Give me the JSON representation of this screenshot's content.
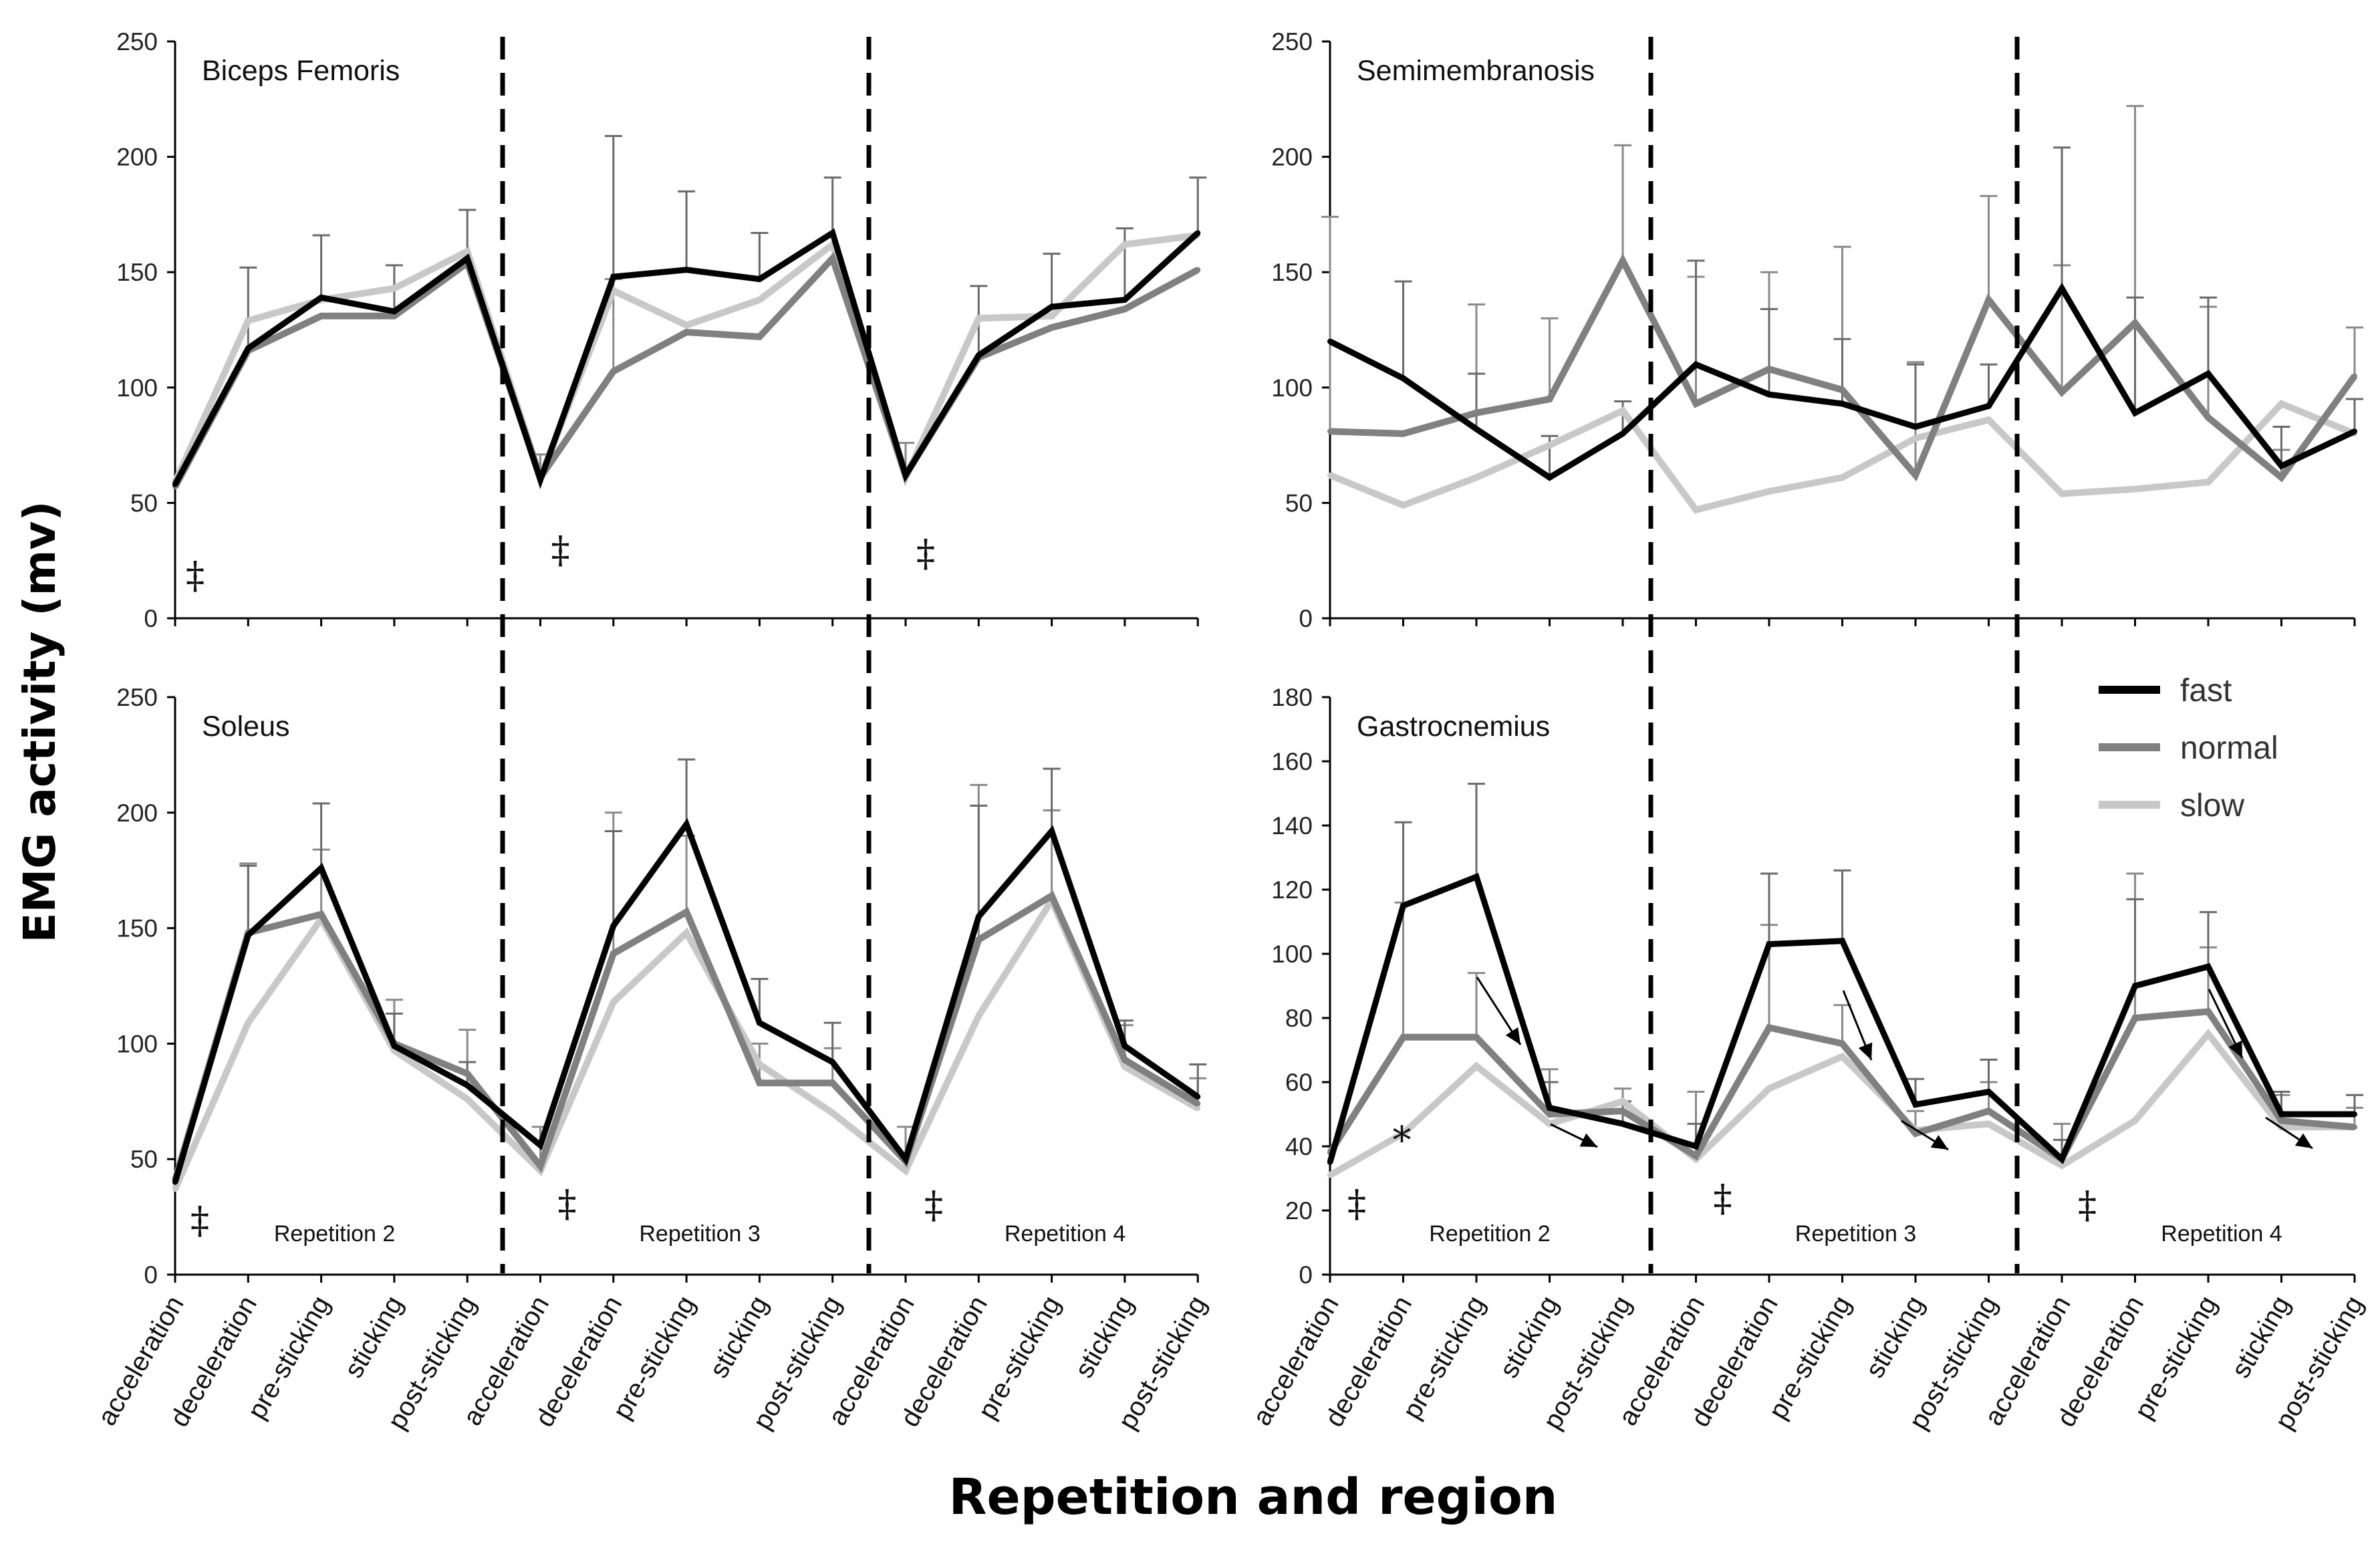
{
  "figure": {
    "ylabel": "EMG activity (mv)",
    "xlabel": "Repetition and region",
    "legend": {
      "position": "right, inside Gastrocnemius panel",
      "entries": [
        {
          "label": "fast",
          "color": "#000000"
        },
        {
          "label": "normal",
          "color": "#808080"
        },
        {
          "label": "slow",
          "color": "#c8c8c8"
        }
      ]
    },
    "regions": [
      "acceleration",
      "deceleration",
      "pre-sticking",
      "sticking",
      "post-sticking"
    ],
    "repetitions": [
      "Repetition 2",
      "Repetition 3",
      "Repetition 4"
    ]
  },
  "chart_data": [
    {
      "type": "line",
      "title": "Biceps Femoris",
      "ylim": [
        0,
        250
      ],
      "yticks": [
        0,
        50,
        100,
        150,
        200,
        250
      ],
      "categories": [
        "acceleration",
        "deceleration",
        "pre-sticking",
        "sticking",
        "post-sticking",
        "acceleration",
        "deceleration",
        "pre-sticking",
        "sticking",
        "post-sticking",
        "acceleration",
        "deceleration",
        "pre-sticking",
        "sticking",
        "post-sticking"
      ],
      "series": [
        {
          "name": "fast",
          "values": [
            58,
            117,
            139,
            133,
            156,
            60,
            148,
            151,
            147,
            167,
            62,
            114,
            135,
            138,
            167
          ],
          "error": [
            null,
            35,
            27,
            20,
            21,
            null,
            61,
            34,
            20,
            24,
            null,
            30,
            23,
            31,
            24
          ]
        },
        {
          "name": "normal",
          "values": [
            57,
            116,
            131,
            131,
            154,
            61,
            107,
            124,
            122,
            156,
            62,
            113,
            126,
            134,
            151
          ],
          "error": [
            null,
            null,
            null,
            null,
            null,
            10,
            40,
            null,
            null,
            null,
            14,
            null,
            null,
            null,
            null
          ]
        },
        {
          "name": "slow",
          "values": [
            59,
            129,
            138,
            143,
            159,
            61,
            142,
            127,
            138,
            162,
            61,
            130,
            131,
            162,
            166
          ],
          "error": [
            null,
            null,
            null,
            null,
            null,
            null,
            null,
            null,
            null,
            null,
            null,
            null,
            null,
            null,
            null
          ]
        }
      ],
      "annotations": [
        "‡",
        "‡",
        "‡"
      ],
      "repetition_labels": []
    },
    {
      "type": "line",
      "title": "Semimembranosis",
      "ylim": [
        0,
        250
      ],
      "yticks": [
        0,
        50,
        100,
        150,
        200,
        250
      ],
      "categories": [
        "acceleration",
        "deceleration",
        "pre-sticking",
        "sticking",
        "post-sticking",
        "acceleration",
        "deceleration",
        "pre-sticking",
        "sticking",
        "post-sticking",
        "acceleration",
        "deceleration",
        "pre-sticking",
        "sticking",
        "post-sticking"
      ],
      "series": [
        {
          "name": "fast",
          "values": [
            120,
            104,
            82,
            61,
            80,
            110,
            97,
            93,
            83,
            92,
            143,
            89,
            106,
            66,
            81
          ],
          "error": [
            null,
            42,
            24,
            18,
            14,
            45,
            37,
            28,
            27,
            18,
            61,
            50,
            33,
            17,
            14
          ]
        },
        {
          "name": "normal",
          "values": [
            81,
            80,
            89,
            95,
            155,
            93,
            108,
            99,
            62,
            138,
            98,
            128,
            87,
            61,
            105
          ],
          "error": [
            93,
            null,
            47,
            35,
            50,
            55,
            42,
            62,
            49,
            45,
            55,
            94,
            48,
            12,
            21
          ]
        },
        {
          "name": "slow",
          "values": [
            62,
            49,
            61,
            75,
            90,
            47,
            55,
            61,
            78,
            86,
            54,
            56,
            59,
            93,
            80
          ],
          "error": [
            null,
            null,
            null,
            null,
            null,
            null,
            null,
            null,
            null,
            null,
            null,
            null,
            null,
            null,
            null
          ]
        }
      ],
      "annotations": [],
      "repetition_labels": []
    },
    {
      "type": "line",
      "title": "Soleus",
      "ylim": [
        0,
        250
      ],
      "yticks": [
        0,
        50,
        100,
        150,
        200,
        250
      ],
      "categories": [
        "acceleration",
        "deceleration",
        "pre-sticking",
        "sticking",
        "post-sticking",
        "acceleration",
        "deceleration",
        "pre-sticking",
        "sticking",
        "post-sticking",
        "acceleration",
        "deceleration",
        "pre-sticking",
        "sticking",
        "post-sticking"
      ],
      "series": [
        {
          "name": "fast",
          "values": [
            40,
            147,
            176,
            99,
            82,
            56,
            151,
            195,
            109,
            92,
            50,
            155,
            192,
            99,
            77
          ],
          "error": [
            null,
            30,
            28,
            14,
            10,
            null,
            41,
            28,
            19,
            17,
            null,
            48,
            27,
            11,
            14
          ]
        },
        {
          "name": "normal",
          "values": [
            41,
            148,
            156,
            100,
            87,
            47,
            139,
            157,
            83,
            83,
            49,
            145,
            164,
            93,
            74
          ],
          "error": [
            null,
            30,
            28,
            19,
            19,
            17,
            61,
            33,
            17,
            15,
            15,
            67,
            37,
            15,
            11
          ]
        },
        {
          "name": "slow",
          "values": [
            37,
            109,
            154,
            97,
            76,
            45,
            118,
            148,
            91,
            70,
            45,
            112,
            162,
            90,
            72
          ],
          "error": [
            null,
            null,
            null,
            null,
            null,
            null,
            null,
            null,
            null,
            null,
            null,
            null,
            null,
            null,
            null
          ]
        }
      ],
      "annotations": [
        "‡",
        "‡",
        "‡"
      ],
      "repetition_labels": [
        "Repetition 2",
        "Repetition 3",
        "Repetition 4"
      ]
    },
    {
      "type": "line",
      "title": "Gastrocnemius",
      "ylim": [
        0,
        180
      ],
      "yticks": [
        0,
        20,
        40,
        60,
        80,
        100,
        120,
        140,
        160,
        180
      ],
      "categories": [
        "acceleration",
        "deceleration",
        "pre-sticking",
        "sticking",
        "post-sticking",
        "acceleration",
        "deceleration",
        "pre-sticking",
        "sticking",
        "post-sticking",
        "acceleration",
        "deceleration",
        "pre-sticking",
        "sticking",
        "post-sticking"
      ],
      "series": [
        {
          "name": "fast",
          "values": [
            35,
            115,
            124,
            52,
            47,
            40,
            103,
            104,
            53,
            57,
            36,
            90,
            96,
            50,
            50
          ],
          "error": [
            null,
            26,
            29,
            8,
            7,
            7,
            22,
            22,
            8,
            10,
            6,
            27,
            17,
            7,
            6
          ]
        },
        {
          "name": "normal",
          "values": [
            38,
            74,
            74,
            50,
            51,
            37,
            77,
            72,
            44,
            51,
            36,
            80,
            82,
            48,
            46
          ],
          "error": [
            null,
            42,
            20,
            14,
            7,
            20,
            32,
            12,
            7,
            9,
            11,
            45,
            20,
            8,
            6
          ]
        },
        {
          "name": "slow",
          "values": [
            31,
            44,
            65,
            47,
            54,
            36,
            58,
            68,
            45,
            47,
            34,
            48,
            75,
            46,
            46
          ],
          "error": [
            null,
            null,
            null,
            null,
            null,
            null,
            null,
            null,
            null,
            null,
            null,
            null,
            null,
            null,
            null
          ]
        }
      ],
      "annotations": [
        "*",
        "‡",
        "‡",
        "‡"
      ],
      "repetition_labels": [
        "Repetition 2",
        "Repetition 3",
        "Repetition 4"
      ]
    }
  ]
}
